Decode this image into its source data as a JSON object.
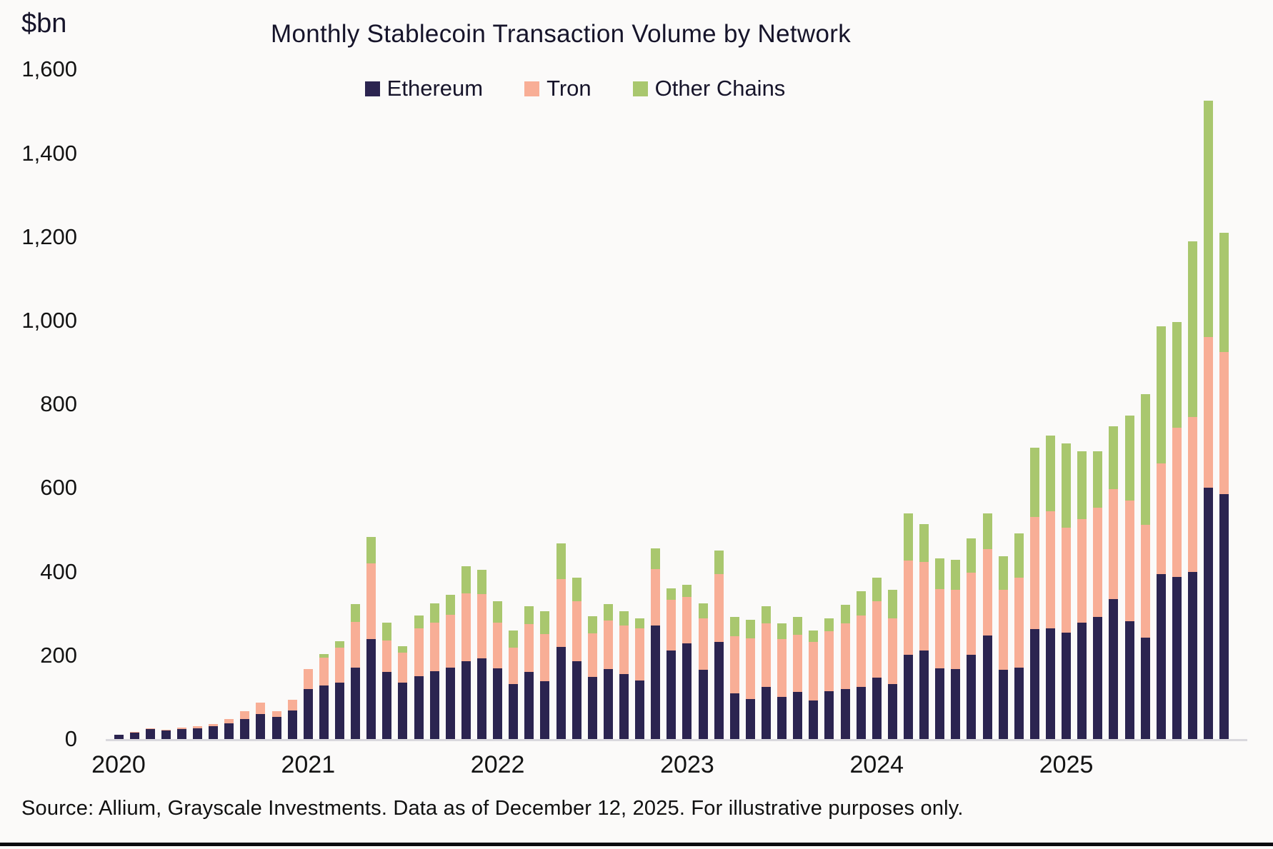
{
  "page": {
    "background": "#fbfaf9"
  },
  "header": {
    "unit_label": "$bn",
    "title": "Monthly Stablecoin Transaction Volume by Network"
  },
  "legend": [
    {
      "label": "Ethereum",
      "color": "#2b2450"
    },
    {
      "label": "Tron",
      "color": "#f8ae96"
    },
    {
      "label": "Other Chains",
      "color": "#a9c76e"
    }
  ],
  "source_note": "Source: Allium, Grayscale Investments. Data as of December 12, 2025. For illustrative purposes only.",
  "chart_data": {
    "type": "bar",
    "stacked": true,
    "title": "Monthly Stablecoin Transaction Volume by Network",
    "xlabel": "",
    "ylabel": "$bn",
    "ylim": [
      0,
      1600
    ],
    "grid": false,
    "legend_position": "top-center",
    "y_tick_values": [
      0,
      200,
      400,
      600,
      800,
      1000,
      1200,
      1400,
      1600
    ],
    "y_tick_labels": [
      "0",
      "200",
      "400",
      "600",
      "800",
      "1,000",
      "1,200",
      "1,400",
      "1,600"
    ],
    "x_year_labels": [
      "2020",
      "2021",
      "2022",
      "2023",
      "2024",
      "2025"
    ],
    "x": [
      "2020-01",
      "2020-02",
      "2020-03",
      "2020-04",
      "2020-05",
      "2020-06",
      "2020-07",
      "2020-08",
      "2020-09",
      "2020-10",
      "2020-11",
      "2020-12",
      "2021-01",
      "2021-02",
      "2021-03",
      "2021-04",
      "2021-05",
      "2021-06",
      "2021-07",
      "2021-08",
      "2021-09",
      "2021-10",
      "2021-11",
      "2021-12",
      "2022-01",
      "2022-02",
      "2022-03",
      "2022-04",
      "2022-05",
      "2022-06",
      "2022-07",
      "2022-08",
      "2022-09",
      "2022-10",
      "2022-11",
      "2022-12",
      "2023-01",
      "2023-02",
      "2023-03",
      "2023-04",
      "2023-05",
      "2023-06",
      "2023-07",
      "2023-08",
      "2023-09",
      "2023-10",
      "2023-11",
      "2023-12",
      "2024-01",
      "2024-02",
      "2024-03",
      "2024-04",
      "2024-05",
      "2024-06",
      "2024-07",
      "2024-08",
      "2024-09",
      "2024-10",
      "2024-11",
      "2024-12",
      "2025-01",
      "2025-02",
      "2025-03",
      "2025-04",
      "2025-05",
      "2025-06",
      "2025-07",
      "2025-08",
      "2025-09",
      "2025-10",
      "2025-11"
    ],
    "series": [
      {
        "name": "Ethereum",
        "color": "#2b2450",
        "values": [
          10,
          15,
          24,
          20,
          24,
          26,
          31,
          38,
          47,
          60,
          53,
          68,
          120,
          128,
          134,
          170,
          239,
          161,
          134,
          150,
          162,
          171,
          186,
          192,
          169,
          132,
          160,
          138,
          220,
          186,
          149,
          168,
          156,
          140,
          271,
          212,
          229,
          166,
          232,
          110,
          95,
          125,
          100,
          112,
          93,
          114,
          120,
          124,
          146,
          131,
          201,
          211,
          169,
          168,
          201,
          248,
          165,
          171,
          262,
          265,
          255,
          279,
          292,
          334,
          281,
          242,
          394,
          388,
          400,
          600,
          585
        ]
      },
      {
        "name": "Tron",
        "color": "#f8ae96",
        "values": [
          1,
          2,
          2,
          2,
          3,
          4,
          5,
          10,
          19,
          27,
          14,
          26,
          47,
          66,
          85,
          110,
          180,
          75,
          72,
          115,
          117,
          126,
          162,
          154,
          110,
          87,
          114,
          113,
          162,
          144,
          103,
          115,
          115,
          125,
          136,
          120,
          111,
          122,
          162,
          135,
          146,
          152,
          139,
          137,
          139,
          144,
          157,
          172,
          183,
          158,
          225,
          212,
          190,
          189,
          196,
          206,
          191,
          214,
          268,
          280,
          250,
          246,
          261,
          263,
          289,
          270,
          265,
          356,
          370,
          360,
          340
        ]
      },
      {
        "name": "Other Chains",
        "color": "#a9c76e",
        "values": [
          0,
          0,
          0,
          0,
          0,
          0,
          0,
          0,
          0,
          0,
          0,
          0,
          0,
          9,
          15,
          42,
          64,
          43,
          16,
          30,
          46,
          48,
          65,
          58,
          51,
          41,
          43,
          54,
          86,
          56,
          41,
          39,
          35,
          23,
          49,
          28,
          29,
          37,
          57,
          47,
          44,
          40,
          38,
          43,
          28,
          31,
          43,
          58,
          57,
          68,
          114,
          91,
          72,
          71,
          83,
          86,
          81,
          106,
          166,
          181,
          202,
          163,
          134,
          151,
          203,
          313,
          327,
          252,
          420,
          565,
          285
        ]
      }
    ]
  }
}
